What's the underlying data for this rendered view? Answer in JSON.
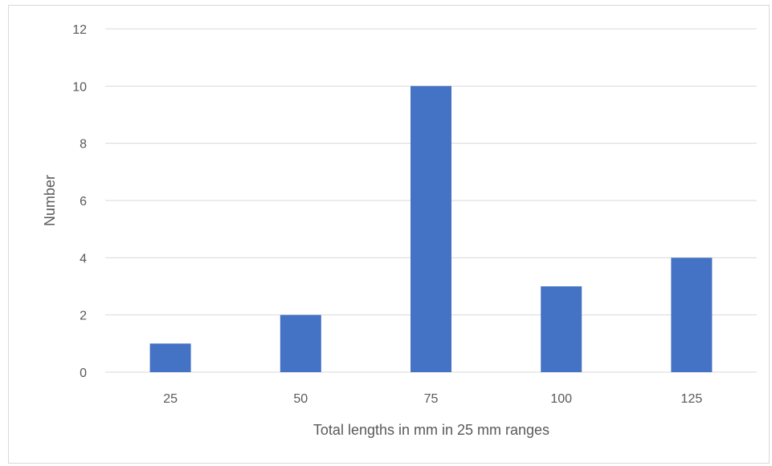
{
  "chart_data": {
    "type": "bar",
    "title": "",
    "xlabel": "Total lengths in mm in 25 mm ranges",
    "ylabel": "Number",
    "categories": [
      "25",
      "50",
      "75",
      "100",
      "125"
    ],
    "values": [
      1,
      2,
      10,
      3,
      4
    ],
    "ylim": [
      0,
      12
    ],
    "yticks": [
      0,
      2,
      4,
      6,
      8,
      10,
      12
    ],
    "grid": true,
    "legend": "none",
    "bar_color": "#4472C4",
    "grid_color": "#d9d9d9",
    "text_color": "#595959"
  }
}
